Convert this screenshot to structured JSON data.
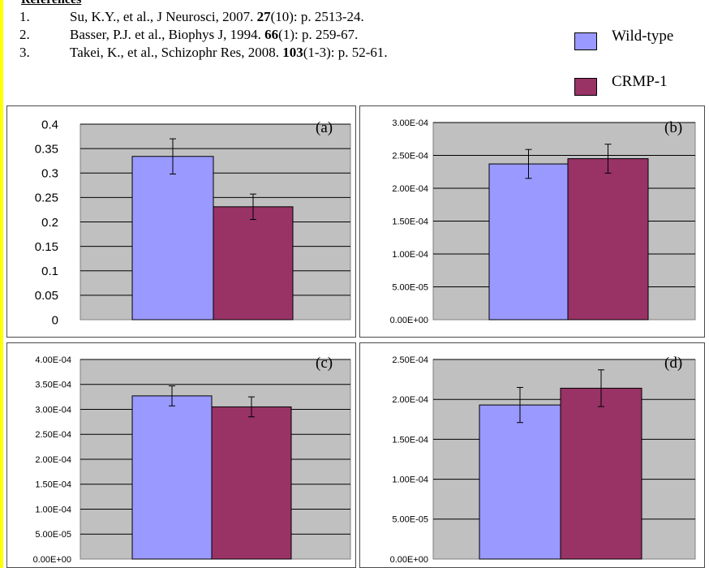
{
  "references": {
    "heading": "References",
    "items": [
      {
        "num": "1.",
        "pre": "Su, K.Y., et al., J Neurosci, 2007. ",
        "vol": "27",
        "post": "(10): p. 2513-24."
      },
      {
        "num": "2.",
        "pre": "Basser, P.J. et al., Biophys J, 1994. ",
        "vol": "66",
        "post": "(1): p. 259-67."
      },
      {
        "num": "3.",
        "pre": "Takei, K., et al., Schizophr Res, 2008. ",
        "vol": "103",
        "post": "(1-3): p. 52-61."
      }
    ]
  },
  "legend": [
    {
      "label": "Wild-type",
      "color": "#9999ff"
    },
    {
      "label": "CRMP-1",
      "color": "#993366"
    }
  ],
  "colors": {
    "plot_bg": "#c0c0c0",
    "accent_strip": "#ffff00"
  },
  "chart_data": [
    {
      "type": "bar",
      "title": "(a)",
      "categories": [
        "Wild-type",
        "CRMP-1"
      ],
      "values": [
        0.334,
        0.231
      ],
      "errors": [
        0.036,
        0.026
      ],
      "ylim": [
        0,
        0.4
      ],
      "yticks": [
        0,
        0.05,
        0.1,
        0.15,
        0.2,
        0.25,
        0.3,
        0.35,
        0.4
      ],
      "ytick_labels": [
        "0",
        "0.05",
        "0.1",
        "0.15",
        "0.2",
        "0.25",
        "0.3",
        "0.35",
        "0.4"
      ],
      "grid": true
    },
    {
      "type": "bar",
      "title": "(b)",
      "categories": [
        "Wild-type",
        "CRMP-1"
      ],
      "values": [
        0.000237,
        0.000245
      ],
      "errors": [
        2.2e-05,
        2.2e-05
      ],
      "ylim": [
        0,
        0.0003
      ],
      "yticks": [
        0,
        5e-05,
        0.0001,
        0.00015,
        0.0002,
        0.00025,
        0.0003
      ],
      "ytick_labels": [
        "0.00E+00",
        "5.00E-05",
        "1.00E-04",
        "1.50E-04",
        "2.00E-04",
        "2.50E-04",
        "3.00E-04"
      ],
      "grid": true
    },
    {
      "type": "bar",
      "title": "(c)",
      "categories": [
        "Wild-type",
        "CRMP-1"
      ],
      "values": [
        0.000327,
        0.000305
      ],
      "errors": [
        2e-05,
        2e-05
      ],
      "ylim": [
        0,
        0.0004
      ],
      "yticks": [
        0,
        5e-05,
        0.0001,
        0.00015,
        0.0002,
        0.00025,
        0.0003,
        0.00035,
        0.0004
      ],
      "ytick_labels": [
        "0.00E+00",
        "5.00E-05",
        "1.00E-04",
        "1.50E-04",
        "2.00E-04",
        "2.50E-04",
        "3.00E-04",
        "3.50E-04",
        "4.00E-04"
      ],
      "grid": true
    },
    {
      "type": "bar",
      "title": "(d)",
      "categories": [
        "Wild-type",
        "CRMP-1"
      ],
      "values": [
        0.000193,
        0.000214
      ],
      "errors": [
        2.2e-05,
        2.3e-05
      ],
      "ylim": [
        0,
        0.00025
      ],
      "yticks": [
        0,
        5e-05,
        0.0001,
        0.00015,
        0.0002,
        0.00025
      ],
      "ytick_labels": [
        "0.00E+00",
        "5.00E-05",
        "1.00E-04",
        "1.50E-04",
        "2.00E-04",
        "2.50E-04"
      ],
      "grid": true
    }
  ]
}
